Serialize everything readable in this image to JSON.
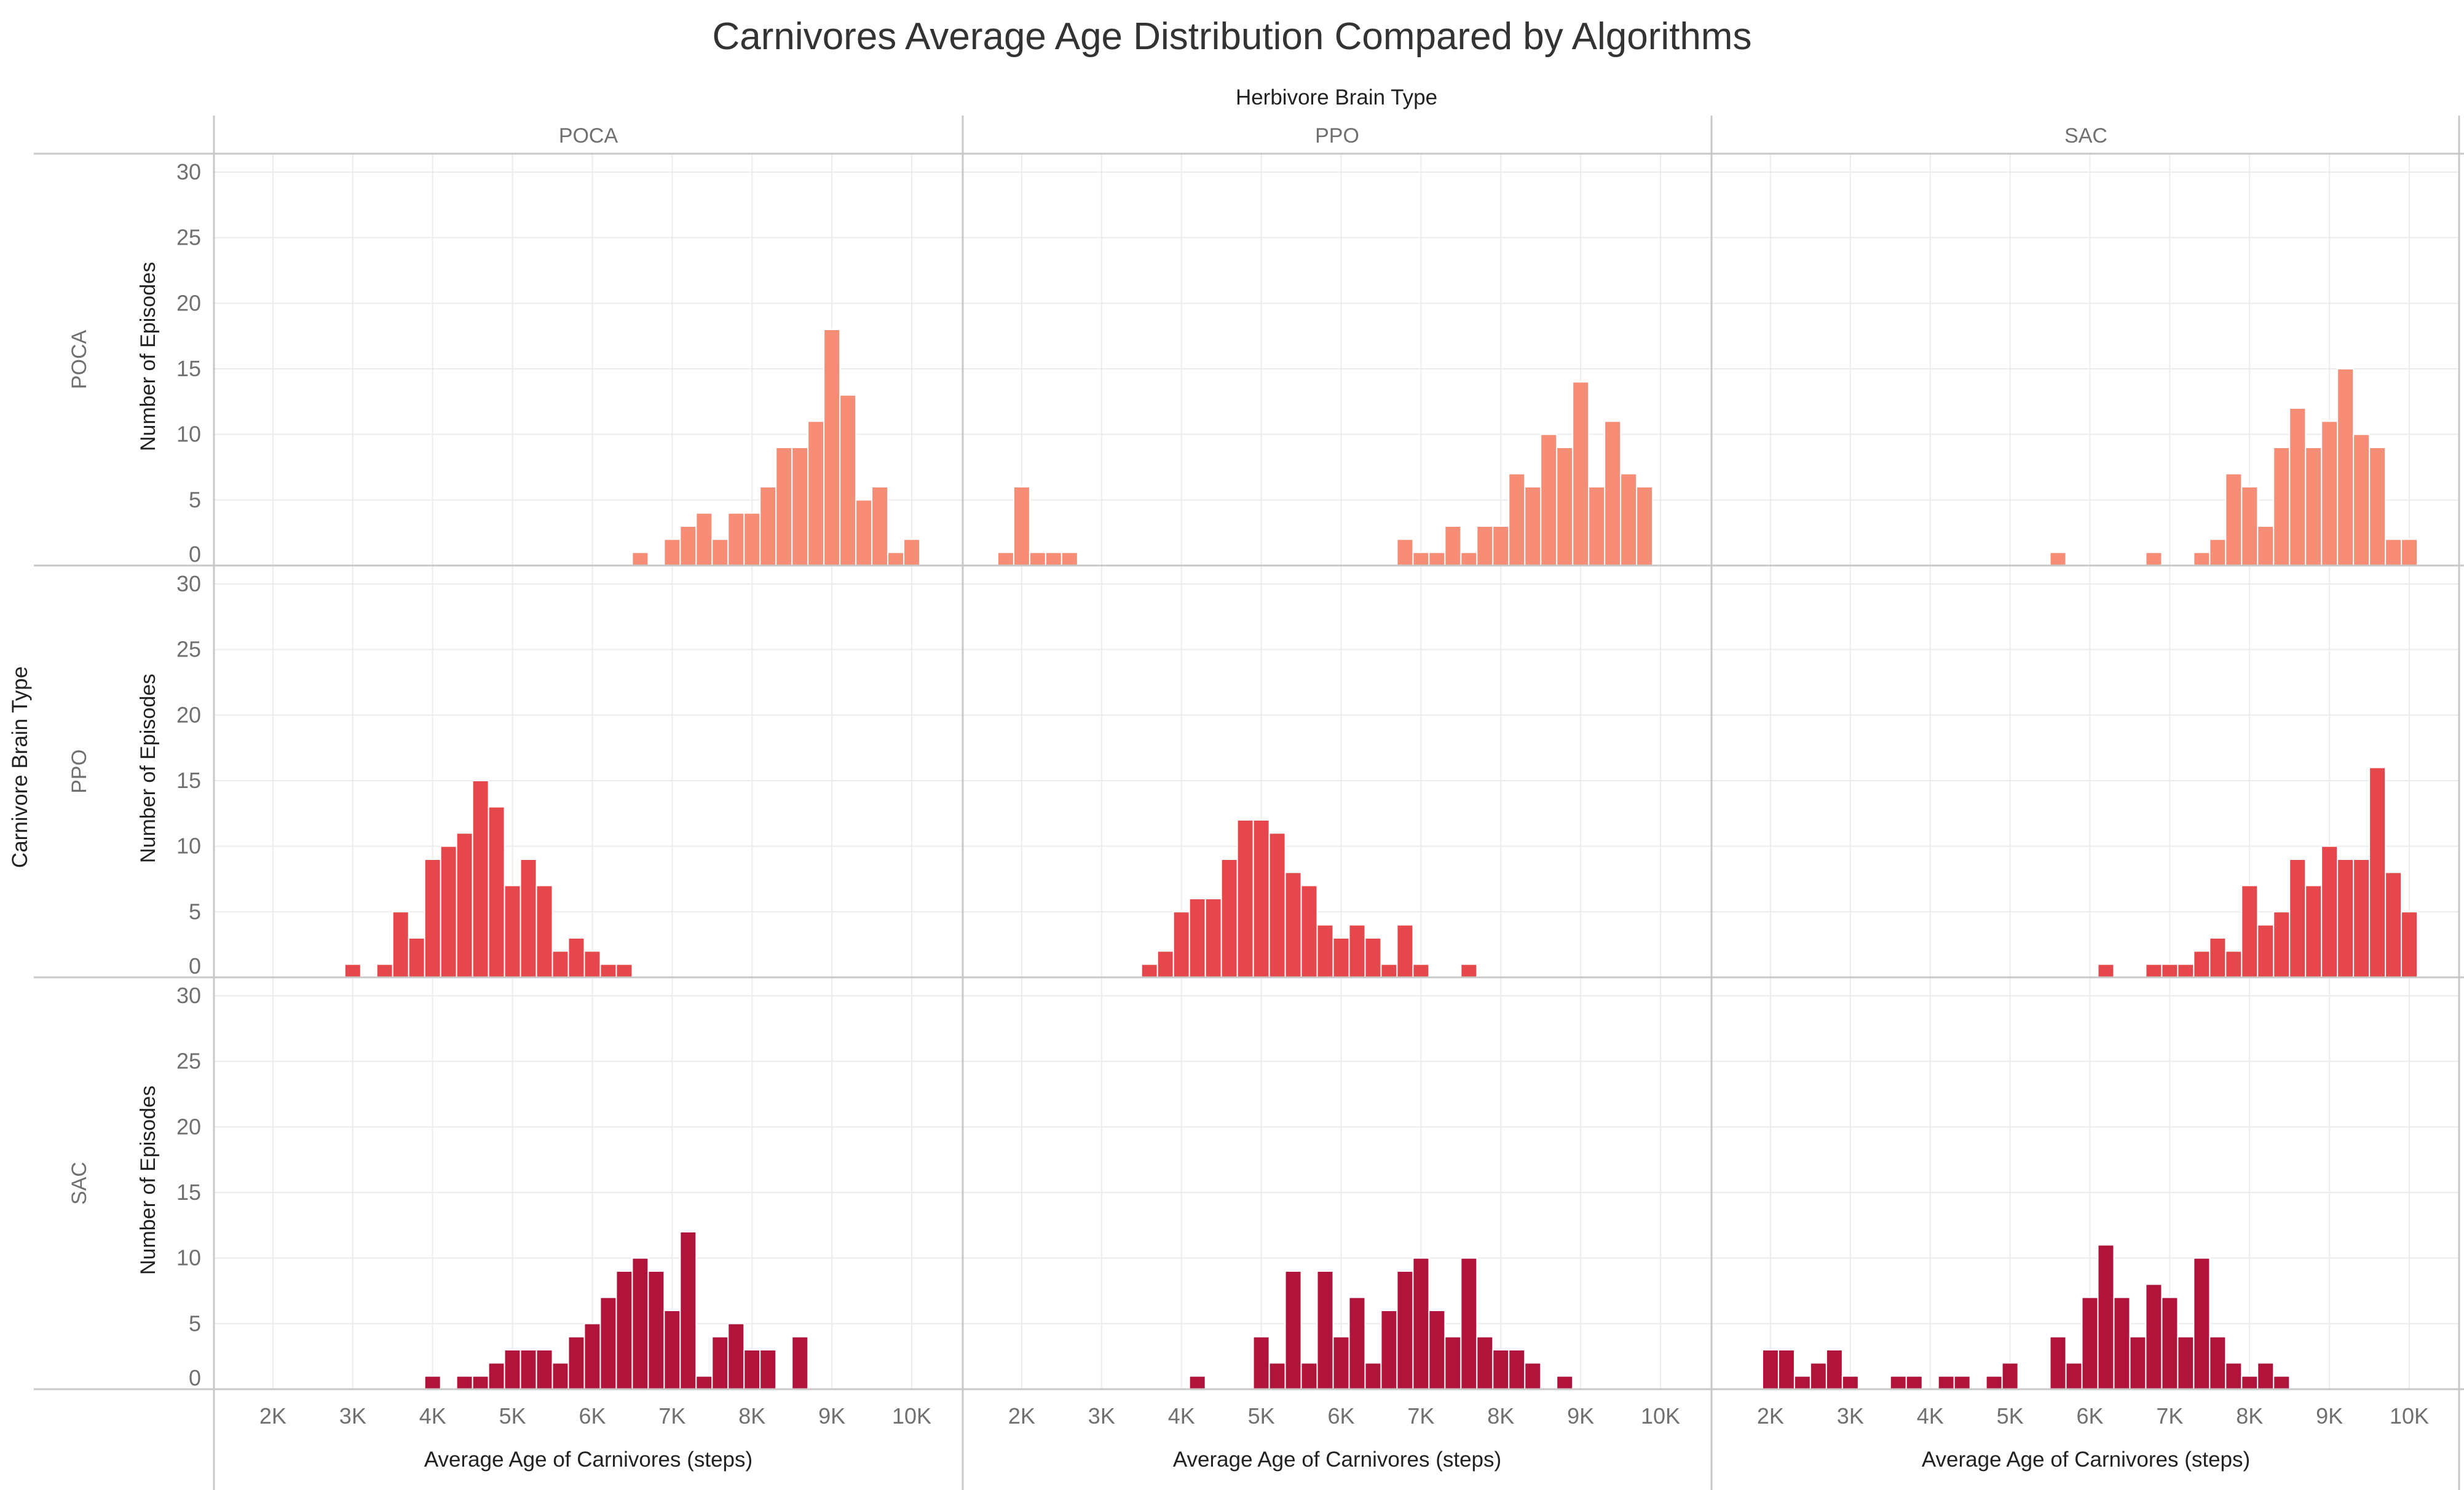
{
  "chart_data": {
    "type": "bar",
    "title": "Carnivores Average Age Distribution Compared by Algorithms",
    "column_header": "Herbivore Brain Type",
    "row_header": "Carnivore Brain Type",
    "columns": [
      "POCA",
      "PPO",
      "SAC"
    ],
    "rows": [
      "POCA",
      "PPO",
      "SAC"
    ],
    "xlabel": "Average Age of Carnivores (steps)",
    "ylabel": "Number of Episodes",
    "xlim": [
      1400,
      10500
    ],
    "ylim": [
      0,
      30
    ],
    "bin_width": 200,
    "x_ticks": [
      2000,
      3000,
      4000,
      5000,
      6000,
      7000,
      8000,
      9000,
      10000
    ],
    "x_tick_labels": [
      "2K",
      "3K",
      "4K",
      "5K",
      "6K",
      "7K",
      "8K",
      "9K",
      "10K"
    ],
    "y_ticks": [
      0,
      5,
      10,
      15,
      20,
      25,
      30
    ],
    "y_tick_labels": [
      "0",
      "5",
      "10",
      "15",
      "20",
      "25",
      "30"
    ],
    "colors": {
      "POCA": "#f78d77",
      "PPO": "#e5474c",
      "SAC": "#b0143a",
      "grid": "#ececec",
      "divider": "#c8c8c8",
      "tick_text": "#707070",
      "title_text": "#333333"
    },
    "facets": [
      {
        "carnivore": "POCA",
        "herbivore": "POCA",
        "series": [
          [
            6600,
            1
          ],
          [
            6800,
            0
          ],
          [
            7000,
            2
          ],
          [
            7200,
            3
          ],
          [
            7400,
            4
          ],
          [
            7600,
            2
          ],
          [
            7800,
            4
          ],
          [
            8000,
            4
          ],
          [
            8200,
            6
          ],
          [
            8400,
            9
          ],
          [
            8600,
            9
          ],
          [
            8800,
            11
          ],
          [
            9000,
            18
          ],
          [
            9200,
            13
          ],
          [
            9400,
            5
          ],
          [
            9600,
            6
          ],
          [
            9800,
            1
          ],
          [
            10000,
            2
          ]
        ]
      },
      {
        "carnivore": "POCA",
        "herbivore": "PPO",
        "series": [
          [
            1800,
            1
          ],
          [
            2000,
            6
          ],
          [
            2200,
            1
          ],
          [
            2400,
            1
          ],
          [
            2600,
            1
          ],
          [
            6800,
            2
          ],
          [
            7000,
            1
          ],
          [
            7200,
            1
          ],
          [
            7400,
            3
          ],
          [
            7600,
            1
          ],
          [
            7800,
            3
          ],
          [
            8000,
            3
          ],
          [
            8200,
            7
          ],
          [
            8400,
            6
          ],
          [
            8600,
            10
          ],
          [
            8800,
            9
          ],
          [
            9000,
            14
          ],
          [
            9200,
            6
          ],
          [
            9400,
            11
          ],
          [
            9600,
            7
          ],
          [
            9800,
            6
          ]
        ]
      },
      {
        "carnivore": "POCA",
        "herbivore": "SAC",
        "series": [
          [
            5600,
            1
          ],
          [
            6800,
            1
          ],
          [
            7400,
            1
          ],
          [
            7600,
            2
          ],
          [
            7800,
            7
          ],
          [
            8000,
            6
          ],
          [
            8200,
            3
          ],
          [
            8400,
            9
          ],
          [
            8600,
            12
          ],
          [
            8800,
            9
          ],
          [
            9000,
            11
          ],
          [
            9200,
            15
          ],
          [
            9400,
            10
          ],
          [
            9600,
            9
          ],
          [
            9800,
            2
          ],
          [
            10000,
            2
          ]
        ]
      },
      {
        "carnivore": "PPO",
        "herbivore": "POCA",
        "series": [
          [
            3000,
            1
          ],
          [
            3400,
            1
          ],
          [
            3600,
            5
          ],
          [
            3800,
            3
          ],
          [
            4000,
            9
          ],
          [
            4200,
            10
          ],
          [
            4400,
            11
          ],
          [
            4600,
            15
          ],
          [
            4800,
            13
          ],
          [
            5000,
            7
          ],
          [
            5200,
            9
          ],
          [
            5400,
            7
          ],
          [
            5600,
            2
          ],
          [
            5800,
            3
          ],
          [
            6000,
            2
          ],
          [
            6200,
            1
          ],
          [
            6400,
            1
          ]
        ]
      },
      {
        "carnivore": "PPO",
        "herbivore": "PPO",
        "series": [
          [
            3600,
            1
          ],
          [
            3800,
            2
          ],
          [
            4000,
            5
          ],
          [
            4200,
            6
          ],
          [
            4400,
            6
          ],
          [
            4600,
            9
          ],
          [
            4800,
            12
          ],
          [
            5000,
            12
          ],
          [
            5200,
            11
          ],
          [
            5400,
            8
          ],
          [
            5600,
            7
          ],
          [
            5800,
            4
          ],
          [
            6000,
            3
          ],
          [
            6200,
            4
          ],
          [
            6400,
            3
          ],
          [
            6600,
            1
          ],
          [
            6800,
            4
          ],
          [
            7000,
            1
          ],
          [
            7600,
            1
          ]
        ]
      },
      {
        "carnivore": "PPO",
        "herbivore": "SAC",
        "series": [
          [
            6200,
            1
          ],
          [
            6800,
            1
          ],
          [
            7000,
            1
          ],
          [
            7200,
            1
          ],
          [
            7400,
            2
          ],
          [
            7600,
            3
          ],
          [
            7800,
            2
          ],
          [
            8000,
            7
          ],
          [
            8200,
            4
          ],
          [
            8400,
            5
          ],
          [
            8600,
            9
          ],
          [
            8800,
            7
          ],
          [
            9000,
            10
          ],
          [
            9200,
            9
          ],
          [
            9400,
            9
          ],
          [
            9600,
            16
          ],
          [
            9800,
            8
          ],
          [
            10000,
            5
          ]
        ]
      },
      {
        "carnivore": "SAC",
        "herbivore": "POCA",
        "series": [
          [
            4000,
            1
          ],
          [
            4400,
            1
          ],
          [
            4600,
            1
          ],
          [
            4800,
            2
          ],
          [
            5000,
            3
          ],
          [
            5200,
            3
          ],
          [
            5400,
            3
          ],
          [
            5600,
            2
          ],
          [
            5800,
            4
          ],
          [
            6000,
            5
          ],
          [
            6200,
            7
          ],
          [
            6400,
            9
          ],
          [
            6600,
            10
          ],
          [
            6800,
            9
          ],
          [
            7000,
            6
          ],
          [
            7200,
            12
          ],
          [
            7400,
            1
          ],
          [
            7600,
            4
          ],
          [
            7800,
            5
          ],
          [
            8000,
            3
          ],
          [
            8200,
            3
          ],
          [
            8600,
            4
          ]
        ]
      },
      {
        "carnivore": "SAC",
        "herbivore": "PPO",
        "series": [
          [
            4200,
            1
          ],
          [
            5000,
            4
          ],
          [
            5200,
            2
          ],
          [
            5400,
            9
          ],
          [
            5600,
            2
          ],
          [
            5800,
            9
          ],
          [
            6000,
            4
          ],
          [
            6200,
            7
          ],
          [
            6400,
            2
          ],
          [
            6600,
            6
          ],
          [
            6800,
            9
          ],
          [
            7000,
            10
          ],
          [
            7200,
            6
          ],
          [
            7400,
            4
          ],
          [
            7600,
            10
          ],
          [
            7800,
            4
          ],
          [
            8000,
            3
          ],
          [
            8200,
            3
          ],
          [
            8400,
            2
          ],
          [
            8800,
            1
          ]
        ]
      },
      {
        "carnivore": "SAC",
        "herbivore": "SAC",
        "series": [
          [
            2000,
            3
          ],
          [
            2200,
            3
          ],
          [
            2400,
            1
          ],
          [
            2600,
            2
          ],
          [
            2800,
            3
          ],
          [
            3000,
            1
          ],
          [
            3600,
            1
          ],
          [
            3800,
            1
          ],
          [
            4200,
            1
          ],
          [
            4400,
            1
          ],
          [
            4800,
            1
          ],
          [
            5000,
            2
          ],
          [
            5600,
            4
          ],
          [
            5800,
            2
          ],
          [
            6000,
            7
          ],
          [
            6200,
            11
          ],
          [
            6400,
            7
          ],
          [
            6600,
            4
          ],
          [
            6800,
            8
          ],
          [
            7000,
            7
          ],
          [
            7200,
            4
          ],
          [
            7400,
            10
          ],
          [
            7600,
            4
          ],
          [
            7800,
            2
          ],
          [
            8000,
            1
          ],
          [
            8200,
            2
          ],
          [
            8400,
            1
          ]
        ]
      }
    ]
  }
}
